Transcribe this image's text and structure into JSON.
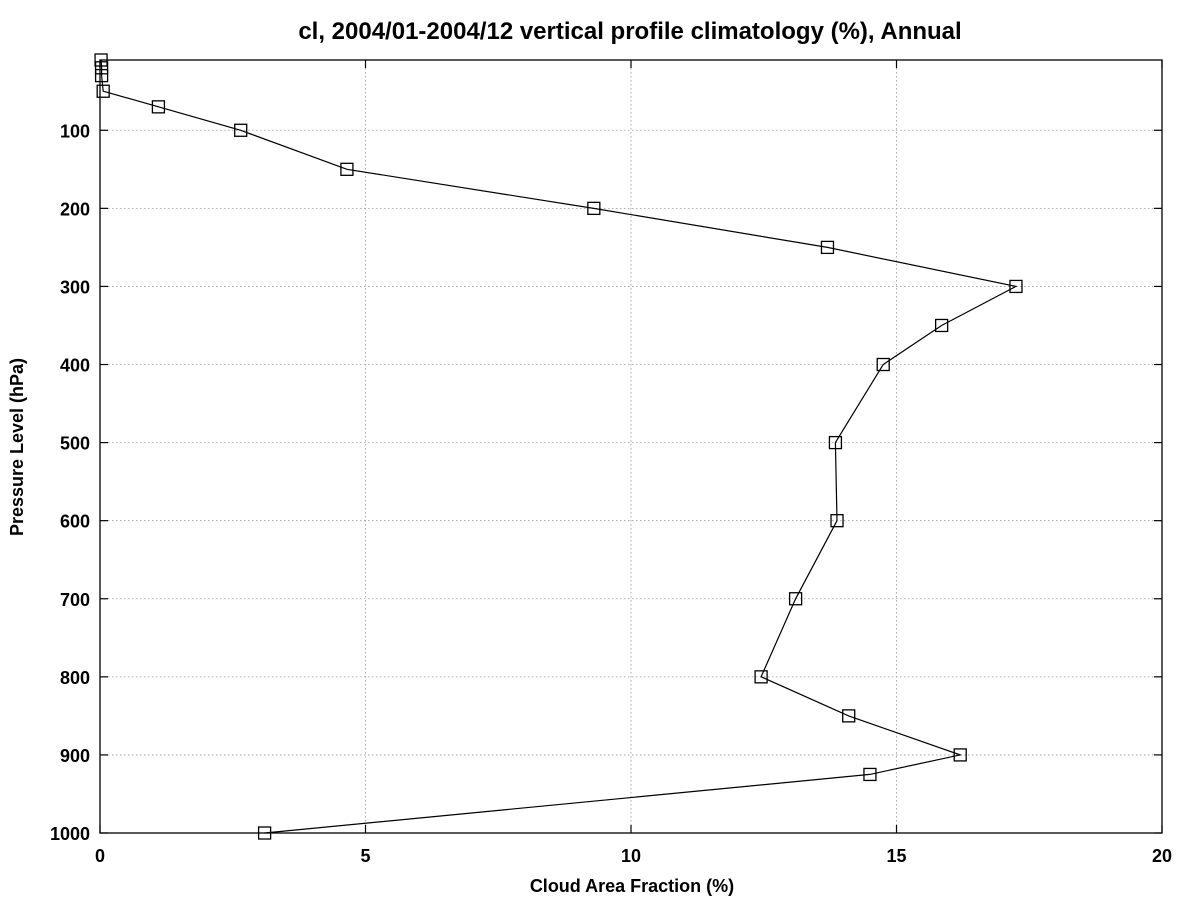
{
  "chart_data": {
    "type": "line",
    "title": "cl, 2004/01-2004/12 vertical profile climatology (%), Annual",
    "xlabel": "Cloud Area Fraction (%)",
    "ylabel": "Pressure Level (hPa)",
    "xlim": [
      0,
      20
    ],
    "ylim": [
      1000,
      10
    ],
    "y_inverted": true,
    "grid": true,
    "legend": "none",
    "marker": "open-square",
    "line_color": "#000000",
    "x_ticks": [
      "0",
      "5",
      "10",
      "15",
      "20"
    ],
    "y_ticks": [
      "100",
      "200",
      "300",
      "400",
      "500",
      "600",
      "700",
      "800",
      "900",
      "1000"
    ],
    "series": [
      {
        "points": [
          {
            "x": 0.02,
            "y": 10
          },
          {
            "x": 0.03,
            "y": 20
          },
          {
            "x": 0.03,
            "y": 30
          },
          {
            "x": 0.06,
            "y": 50
          },
          {
            "x": 1.1,
            "y": 70
          },
          {
            "x": 2.65,
            "y": 100
          },
          {
            "x": 4.65,
            "y": 150
          },
          {
            "x": 9.3,
            "y": 200
          },
          {
            "x": 13.7,
            "y": 250
          },
          {
            "x": 17.25,
            "y": 300
          },
          {
            "x": 15.85,
            "y": 350
          },
          {
            "x": 14.75,
            "y": 400
          },
          {
            "x": 13.85,
            "y": 500
          },
          {
            "x": 13.88,
            "y": 600
          },
          {
            "x": 13.1,
            "y": 700
          },
          {
            "x": 12.45,
            "y": 800
          },
          {
            "x": 14.1,
            "y": 850
          },
          {
            "x": 16.2,
            "y": 900
          },
          {
            "x": 14.5,
            "y": 925
          },
          {
            "x": 3.1,
            "y": 1000
          }
        ]
      }
    ]
  }
}
